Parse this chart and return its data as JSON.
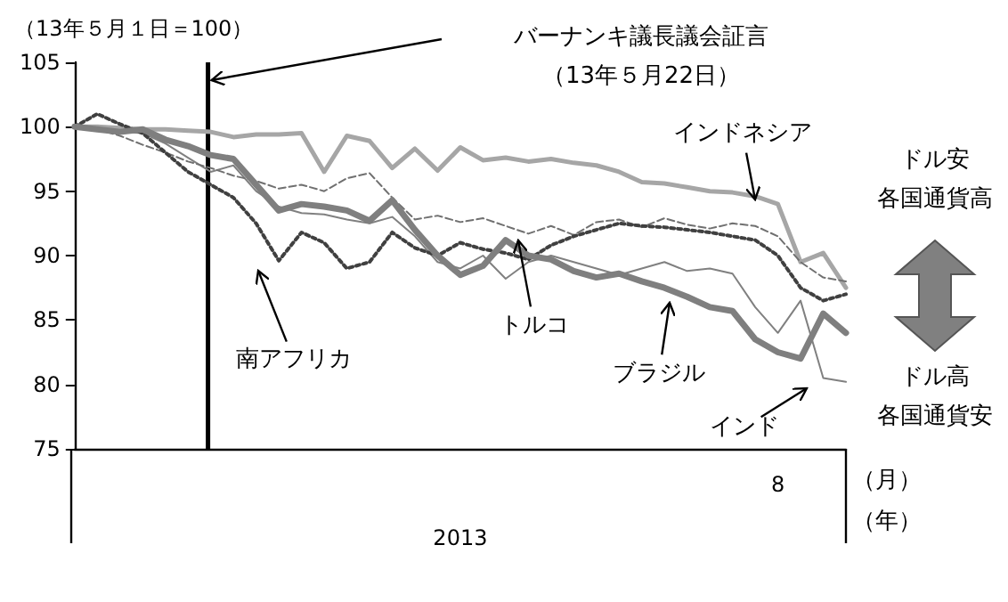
{
  "chart_data": {
    "type": "line",
    "ylabel": "（13年５月１日＝100）",
    "xlabel": "2013",
    "categories": [
      null,
      null,
      null,
      null,
      null,
      null,
      null,
      null,
      null,
      null,
      null,
      null,
      null,
      null,
      null,
      null,
      null,
      null,
      null,
      null,
      null,
      null,
      null,
      null,
      null,
      null,
      null,
      null,
      null,
      null,
      null,
      "8",
      null,
      null,
      null
    ],
    "series": [
      {
        "color": "#808080",
        "line_style": "solid",
        "values": [
          100,
          99.8,
          99.6,
          99.5,
          98.7,
          97.6,
          96.5,
          97,
          95,
          93.8,
          93.3,
          93.2,
          92.8,
          92.5,
          93,
          91.5,
          89.5,
          89,
          90,
          88.2,
          89.5,
          90,
          89.5,
          89,
          88.5,
          89,
          89.5,
          88.8,
          89,
          88.6,
          86,
          84,
          86.5,
          80.5,
          80.2
        ]
      },
      {
        "color": "#a6a6a6",
        "line_style": "solid",
        "values": [
          100,
          100,
          99.9,
          99.8,
          99.8,
          99.7,
          99.6,
          99.2,
          99.4,
          99.4,
          99.5,
          96.5,
          99.3,
          98.9,
          96.8,
          98.3,
          96.6,
          98.4,
          97.4,
          97.6,
          97.3,
          97.5,
          97.2,
          97,
          96.5,
          95.7,
          95.6,
          95.3,
          95,
          94.9,
          94.6,
          94,
          89.5,
          90.2,
          87.5
        ]
      },
      {
        "color": "#707070",
        "line_style": "dashed",
        "values": [
          100,
          99.8,
          99.3,
          98.6,
          98,
          97.3,
          96.8,
          96.2,
          95.8,
          95.2,
          95.5,
          95,
          96,
          96.4,
          94.5,
          92.8,
          93.1,
          92.6,
          92.9,
          92.3,
          91.7,
          92.3,
          91.6,
          92.6,
          92.8,
          92.2,
          92.9,
          92.4,
          92.1,
          92.5,
          92.3,
          91.5,
          89.5,
          88.3,
          88
        ]
      },
      {
        "color": "#404040",
        "line_style": "dotted",
        "values": [
          100,
          101,
          100.2,
          99.5,
          98,
          96.5,
          95.5,
          94.5,
          92.5,
          89.6,
          91.8,
          91,
          89,
          89.5,
          91.8,
          90.6,
          90,
          91,
          90.5,
          90.2,
          89.7,
          90.8,
          91.5,
          92,
          92.5,
          92.3,
          92.2,
          92,
          91.8,
          91.5,
          91.2,
          90,
          87.5,
          86.5,
          87
        ]
      },
      {
        "color": "#7f7f7f",
        "line_style": "solid",
        "values": [
          100,
          99.8,
          99.6,
          99.8,
          99,
          98.5,
          97.8,
          97.5,
          95.5,
          93.5,
          94,
          93.8,
          93.5,
          92.7,
          94.3,
          92,
          90,
          88.5,
          89.2,
          91.2,
          90,
          89.7,
          88.8,
          88.3,
          88.6,
          88,
          87.5,
          86.8,
          86,
          85.7,
          83.5,
          82.5,
          82,
          85.5,
          84
        ]
      }
    ],
    "ylim": [
      75,
      105
    ],
    "yticks": [
      75,
      80,
      85,
      90,
      95,
      100,
      105
    ],
    "grid": false,
    "marker": "none",
    "annotations": [
      "インドネシア",
      "トルコ",
      "南アフリカ",
      "ブラジル",
      "インド",
      "ドル安",
      "各国通貨高",
      "ドル高",
      "各国通貨安",
      "（月）",
      "（年）",
      "バーナンキ議長議会証言（13年５月22日）"
    ]
  }
}
